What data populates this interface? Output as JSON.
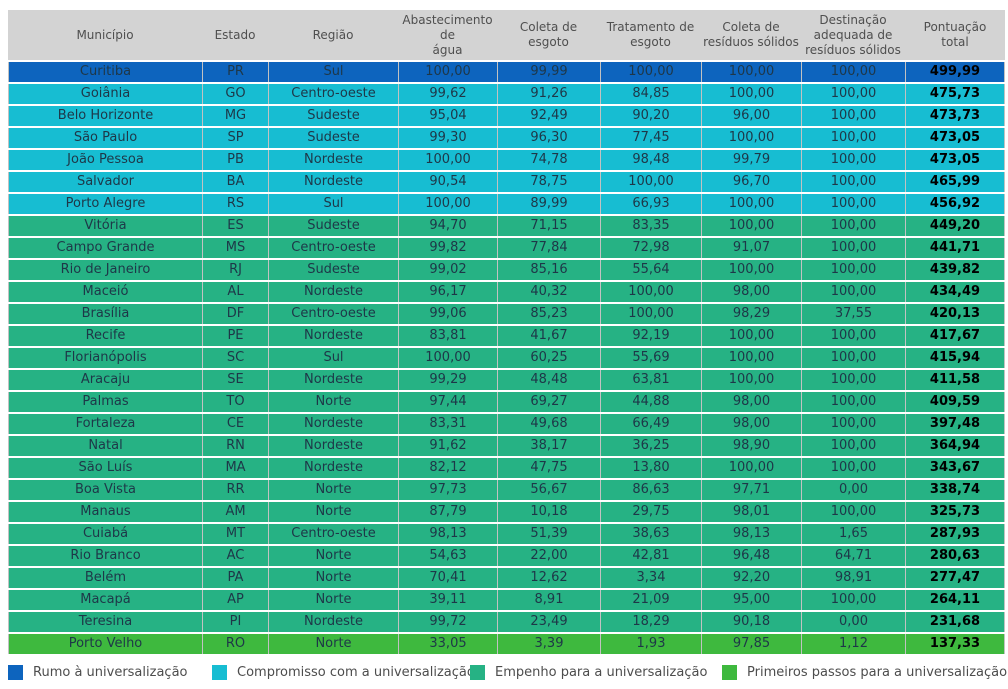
{
  "chart_data": {
    "type": "table",
    "columns": [
      "Município",
      "Estado",
      "Região",
      "Abastecimento\nde\nágua",
      "Coleta de\nesgoto",
      "Tratamento de\nesgoto",
      "Coleta de\nresíduos sólidos",
      "Destinação\nadequada de\nresíduos sólidos",
      "Pontuação\ntotal"
    ],
    "column_keys": [
      "municipio",
      "estado",
      "regiao",
      "abastecimento-agua",
      "coleta-esgoto",
      "tratamento-esgoto",
      "coleta-residuos-solidos",
      "destinacao-adequada-residuos-solidos",
      "pontuacao-total"
    ],
    "categories": {
      "rumo": {
        "label": "Rumo à universalização",
        "color": "#0d64be"
      },
      "compromisso": {
        "label": "Compromisso com a universalização",
        "color": "#17bdd2"
      },
      "empenho": {
        "label": "Empenho para a universalização",
        "color": "#26b284"
      },
      "primeiros": {
        "label": "Primeiros passos para a universalização",
        "color": "#3eb93e"
      }
    },
    "legend_order": [
      "rumo",
      "compromisso",
      "empenho",
      "primeiros"
    ],
    "rows": [
      {
        "categoria": "rumo",
        "cells": [
          "Curitiba",
          "PR",
          "Sul",
          "100,00",
          "99,99",
          "100,00",
          "100,00",
          "100,00",
          "499,99"
        ]
      },
      {
        "categoria": "compromisso",
        "cells": [
          "Goiânia",
          "GO",
          "Centro-oeste",
          "99,62",
          "91,26",
          "84,85",
          "100,00",
          "100,00",
          "475,73"
        ]
      },
      {
        "categoria": "compromisso",
        "cells": [
          "Belo Horizonte",
          "MG",
          "Sudeste",
          "95,04",
          "92,49",
          "90,20",
          "96,00",
          "100,00",
          "473,73"
        ]
      },
      {
        "categoria": "compromisso",
        "cells": [
          "São Paulo",
          "SP",
          "Sudeste",
          "99,30",
          "96,30",
          "77,45",
          "100,00",
          "100,00",
          "473,05"
        ]
      },
      {
        "categoria": "compromisso",
        "cells": [
          "João Pessoa",
          "PB",
          "Nordeste",
          "100,00",
          "74,78",
          "98,48",
          "99,79",
          "100,00",
          "473,05"
        ]
      },
      {
        "categoria": "compromisso",
        "cells": [
          "Salvador",
          "BA",
          "Nordeste",
          "90,54",
          "78,75",
          "100,00",
          "96,70",
          "100,00",
          "465,99"
        ]
      },
      {
        "categoria": "compromisso",
        "cells": [
          "Porto Alegre",
          "RS",
          "Sul",
          "100,00",
          "89,99",
          "66,93",
          "100,00",
          "100,00",
          "456,92"
        ]
      },
      {
        "categoria": "empenho",
        "cells": [
          "Vitória",
          "ES",
          "Sudeste",
          "94,70",
          "71,15",
          "83,35",
          "100,00",
          "100,00",
          "449,20"
        ]
      },
      {
        "categoria": "empenho",
        "cells": [
          "Campo Grande",
          "MS",
          "Centro-oeste",
          "99,82",
          "77,84",
          "72,98",
          "91,07",
          "100,00",
          "441,71"
        ]
      },
      {
        "categoria": "empenho",
        "cells": [
          "Rio de Janeiro",
          "RJ",
          "Sudeste",
          "99,02",
          "85,16",
          "55,64",
          "100,00",
          "100,00",
          "439,82"
        ]
      },
      {
        "categoria": "empenho",
        "cells": [
          "Maceió",
          "AL",
          "Nordeste",
          "96,17",
          "40,32",
          "100,00",
          "98,00",
          "100,00",
          "434,49"
        ]
      },
      {
        "categoria": "empenho",
        "cells": [
          "Brasília",
          "DF",
          "Centro-oeste",
          "99,06",
          "85,23",
          "100,00",
          "98,29",
          "37,55",
          "420,13"
        ]
      },
      {
        "categoria": "empenho",
        "cells": [
          "Recife",
          "PE",
          "Nordeste",
          "83,81",
          "41,67",
          "92,19",
          "100,00",
          "100,00",
          "417,67"
        ]
      },
      {
        "categoria": "empenho",
        "cells": [
          "Florianópolis",
          "SC",
          "Sul",
          "100,00",
          "60,25",
          "55,69",
          "100,00",
          "100,00",
          "415,94"
        ]
      },
      {
        "categoria": "empenho",
        "cells": [
          "Aracaju",
          "SE",
          "Nordeste",
          "99,29",
          "48,48",
          "63,81",
          "100,00",
          "100,00",
          "411,58"
        ]
      },
      {
        "categoria": "empenho",
        "cells": [
          "Palmas",
          "TO",
          "Norte",
          "97,44",
          "69,27",
          "44,88",
          "98,00",
          "100,00",
          "409,59"
        ]
      },
      {
        "categoria": "empenho",
        "cells": [
          "Fortaleza",
          "CE",
          "Nordeste",
          "83,31",
          "49,68",
          "66,49",
          "98,00",
          "100,00",
          "397,48"
        ]
      },
      {
        "categoria": "empenho",
        "cells": [
          "Natal",
          "RN",
          "Nordeste",
          "91,62",
          "38,17",
          "36,25",
          "98,90",
          "100,00",
          "364,94"
        ]
      },
      {
        "categoria": "empenho",
        "cells": [
          "São Luís",
          "MA",
          "Nordeste",
          "82,12",
          "47,75",
          "13,80",
          "100,00",
          "100,00",
          "343,67"
        ]
      },
      {
        "categoria": "empenho",
        "cells": [
          "Boa Vista",
          "RR",
          "Norte",
          "97,73",
          "56,67",
          "86,63",
          "97,71",
          "0,00",
          "338,74"
        ]
      },
      {
        "categoria": "empenho",
        "cells": [
          "Manaus",
          "AM",
          "Norte",
          "87,79",
          "10,18",
          "29,75",
          "98,01",
          "100,00",
          "325,73"
        ]
      },
      {
        "categoria": "empenho",
        "cells": [
          "Cuiabá",
          "MT",
          "Centro-oeste",
          "98,13",
          "51,39",
          "38,63",
          "98,13",
          "1,65",
          "287,93"
        ]
      },
      {
        "categoria": "empenho",
        "cells": [
          "Rio Branco",
          "AC",
          "Norte",
          "54,63",
          "22,00",
          "42,81",
          "96,48",
          "64,71",
          "280,63"
        ]
      },
      {
        "categoria": "empenho",
        "cells": [
          "Belém",
          "PA",
          "Norte",
          "70,41",
          "12,62",
          "3,34",
          "92,20",
          "98,91",
          "277,47"
        ]
      },
      {
        "categoria": "empenho",
        "cells": [
          "Macapá",
          "AP",
          "Norte",
          "39,11",
          "8,91",
          "21,09",
          "95,00",
          "100,00",
          "264,11"
        ]
      },
      {
        "categoria": "empenho",
        "cells": [
          "Teresina",
          "PI",
          "Nordeste",
          "99,72",
          "23,49",
          "18,29",
          "90,18",
          "0,00",
          "231,68"
        ]
      },
      {
        "categoria": "primeiros",
        "cells": [
          "Porto Velho",
          "RO",
          "Norte",
          "33,05",
          "3,39",
          "1,93",
          "97,85",
          "1,12",
          "137,33"
        ]
      }
    ]
  }
}
